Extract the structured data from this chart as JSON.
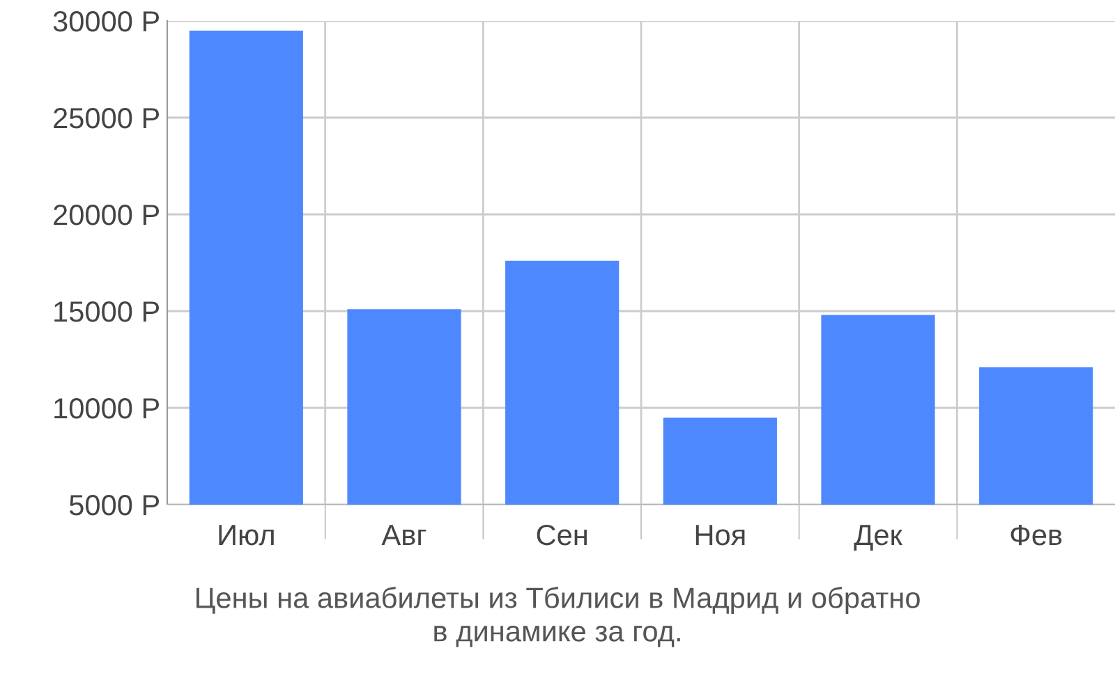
{
  "chart_data": {
    "type": "bar",
    "categories": [
      "Июл",
      "Авг",
      "Сен",
      "Ноя",
      "Дек",
      "Фев"
    ],
    "values": [
      29500,
      15100,
      17600,
      9500,
      14800,
      12100
    ],
    "color": "#4d88ff",
    "ylim": [
      5000,
      30000
    ],
    "yticks": [
      {
        "value": 5000,
        "label": "5000 Р"
      },
      {
        "value": 10000,
        "label": "10000 Р"
      },
      {
        "value": 15000,
        "label": "15000 Р"
      },
      {
        "value": 20000,
        "label": "20000 Р"
      },
      {
        "value": 25000,
        "label": "25000 Р"
      },
      {
        "value": 30000,
        "label": "30000 Р"
      }
    ],
    "grid": true,
    "annotations": [
      "Цены на авиабилеты из Тбилиси в Мадрид и обратно\nв динамике за год."
    ]
  }
}
